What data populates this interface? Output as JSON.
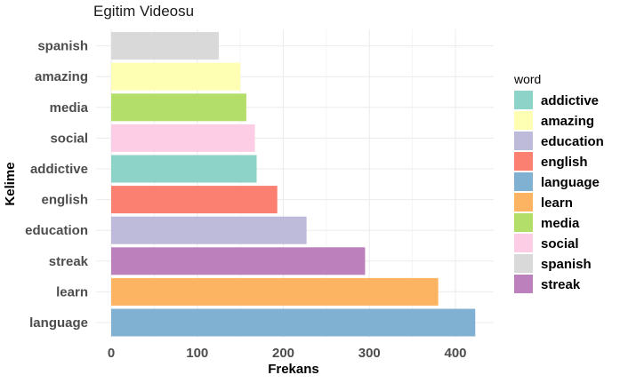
{
  "chart_data": {
    "type": "bar",
    "orientation": "horizontal",
    "title": "Egitim Videosu",
    "xlabel": "Frekans",
    "ylabel": "Kelime",
    "xlim": [
      0,
      440
    ],
    "x_ticks": [
      0,
      100,
      200,
      300,
      400
    ],
    "grid": true,
    "legend_title": "word",
    "legend_position": "right",
    "categories": [
      "language",
      "learn",
      "streak",
      "education",
      "english",
      "addictive",
      "social",
      "media",
      "amazing",
      "spanish"
    ],
    "values": [
      423,
      380,
      295,
      227,
      193,
      169,
      167,
      157,
      150,
      125
    ],
    "legend": [
      {
        "label": "addictive",
        "color": "#8DD3C7"
      },
      {
        "label": "amazing",
        "color": "#FFFFB3"
      },
      {
        "label": "education",
        "color": "#BEBADA"
      },
      {
        "label": "english",
        "color": "#FB8072"
      },
      {
        "label": "language",
        "color": "#80B1D3"
      },
      {
        "label": "learn",
        "color": "#FDB462"
      },
      {
        "label": "media",
        "color": "#B3DE69"
      },
      {
        "label": "social",
        "color": "#FCCDE5"
      },
      {
        "label": "spanish",
        "color": "#D9D9D9"
      },
      {
        "label": "streak",
        "color": "#BC80BD"
      }
    ]
  }
}
